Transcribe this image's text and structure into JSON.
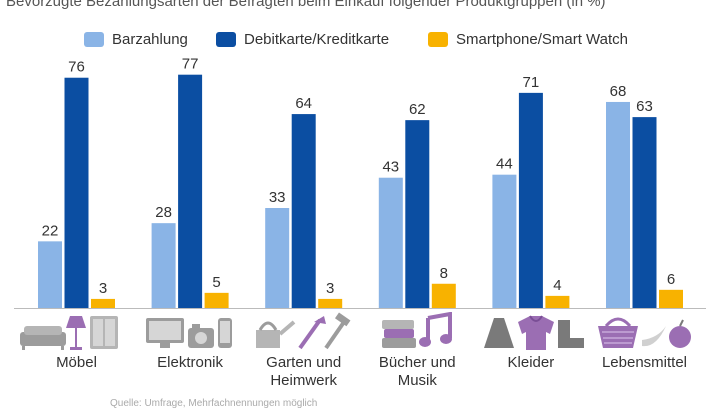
{
  "subtitle": "Bevorzugte Bezahlungsarten der Befragten beim Einkauf folgender Produktgruppen (in %)",
  "source": "Quelle: Umfrage, Mehrfachnennungen möglich",
  "colors": {
    "barzahlung": "#8AB4E6",
    "debit": "#0B4EA2",
    "smart": "#F8B200",
    "icon": "#9C9C9C",
    "icon_purple": "#9B6EB3",
    "axis": "#BBBBBB"
  },
  "chart_data": {
    "type": "bar",
    "title": "Bevorzugte Bezahlungsarten der Befragten beim Einkauf folgender Produktgruppen (in %)",
    "xlabel": "",
    "ylabel": "",
    "ylim": [
      0,
      80
    ],
    "grid": false,
    "legend_position": "top",
    "categories": [
      "Möbel",
      "Elektronik",
      "Garten und Heimwerk",
      "Bücher und Musik",
      "Kleider",
      "Lebensmittel"
    ],
    "category_lines": [
      [
        "Möbel"
      ],
      [
        "Elektronik"
      ],
      [
        "Garten und",
        "Heimwerk"
      ],
      [
        "Bücher und",
        "Musik"
      ],
      [
        "Kleider"
      ],
      [
        "Lebensmittel"
      ]
    ],
    "series": [
      {
        "name": "Barzahlung",
        "color": "#8AB4E6",
        "values": [
          22,
          28,
          33,
          43,
          44,
          68
        ]
      },
      {
        "name": "Debitkarte/Kreditkarte",
        "color": "#0B4EA2",
        "values": [
          76,
          77,
          64,
          62,
          71,
          63
        ]
      },
      {
        "name": "Smartphone/Smart Watch",
        "color": "#F8B200",
        "values": [
          3,
          5,
          3,
          8,
          4,
          6
        ]
      }
    ]
  },
  "icons": [
    "furniture-icon",
    "electronics-icon",
    "garden-tools-icon",
    "books-music-icon",
    "clothing-icon",
    "groceries-icon"
  ]
}
